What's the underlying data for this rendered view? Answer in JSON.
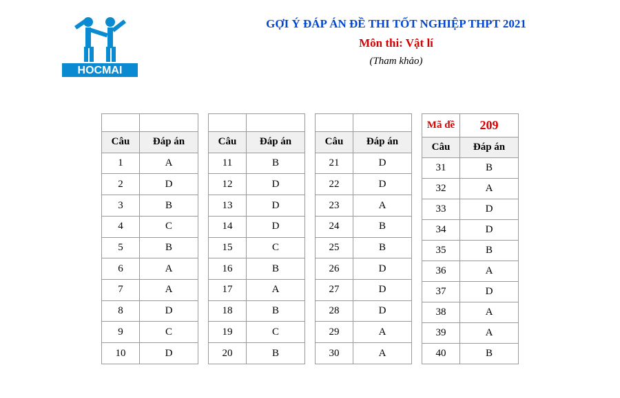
{
  "header": {
    "title_line1": "GỢI Ý ĐÁP ÁN ĐỀ THI TỐT NGHIỆP THPT 2021",
    "title_line2": "Môn thi: Vật lí",
    "title_line3": "(Tham khảo)",
    "logo_text": "HOCMAI"
  },
  "exam": {
    "ma_de_label": "Mã đề",
    "ma_de_value": "209",
    "col_question": "Câu",
    "col_answer": "Đáp án"
  },
  "colors": {
    "title_blue": "#0047d1",
    "title_red": "#d60000",
    "logo_blue": "#0a8ad1",
    "border_gray": "#999999",
    "header_bg": "#f0f0f0"
  },
  "groups": [
    {
      "rows": [
        {
          "q": "1",
          "a": "A"
        },
        {
          "q": "2",
          "a": "D"
        },
        {
          "q": "3",
          "a": "B"
        },
        {
          "q": "4",
          "a": "C"
        },
        {
          "q": "5",
          "a": "B"
        },
        {
          "q": "6",
          "a": "A"
        },
        {
          "q": "7",
          "a": "A"
        },
        {
          "q": "8",
          "a": "D"
        },
        {
          "q": "9",
          "a": "C"
        },
        {
          "q": "10",
          "a": "D"
        }
      ]
    },
    {
      "rows": [
        {
          "q": "11",
          "a": "B"
        },
        {
          "q": "12",
          "a": "D"
        },
        {
          "q": "13",
          "a": "D"
        },
        {
          "q": "14",
          "a": "D"
        },
        {
          "q": "15",
          "a": "C"
        },
        {
          "q": "16",
          "a": "B"
        },
        {
          "q": "17",
          "a": "A"
        },
        {
          "q": "18",
          "a": "B"
        },
        {
          "q": "19",
          "a": "C"
        },
        {
          "q": "20",
          "a": "B"
        }
      ]
    },
    {
      "rows": [
        {
          "q": "21",
          "a": "D"
        },
        {
          "q": "22",
          "a": "D"
        },
        {
          "q": "23",
          "a": "A"
        },
        {
          "q": "24",
          "a": "B"
        },
        {
          "q": "25",
          "a": "B"
        },
        {
          "q": "26",
          "a": "D"
        },
        {
          "q": "27",
          "a": "D"
        },
        {
          "q": "28",
          "a": "D"
        },
        {
          "q": "29",
          "a": "A"
        },
        {
          "q": "30",
          "a": "A"
        }
      ]
    },
    {
      "rows": [
        {
          "q": "31",
          "a": "B"
        },
        {
          "q": "32",
          "a": "A"
        },
        {
          "q": "33",
          "a": "D"
        },
        {
          "q": "34",
          "a": "D"
        },
        {
          "q": "35",
          "a": "B"
        },
        {
          "q": "36",
          "a": "A"
        },
        {
          "q": "37",
          "a": "D"
        },
        {
          "q": "38",
          "a": "A"
        },
        {
          "q": "39",
          "a": "A"
        },
        {
          "q": "40",
          "a": "B"
        }
      ]
    }
  ]
}
